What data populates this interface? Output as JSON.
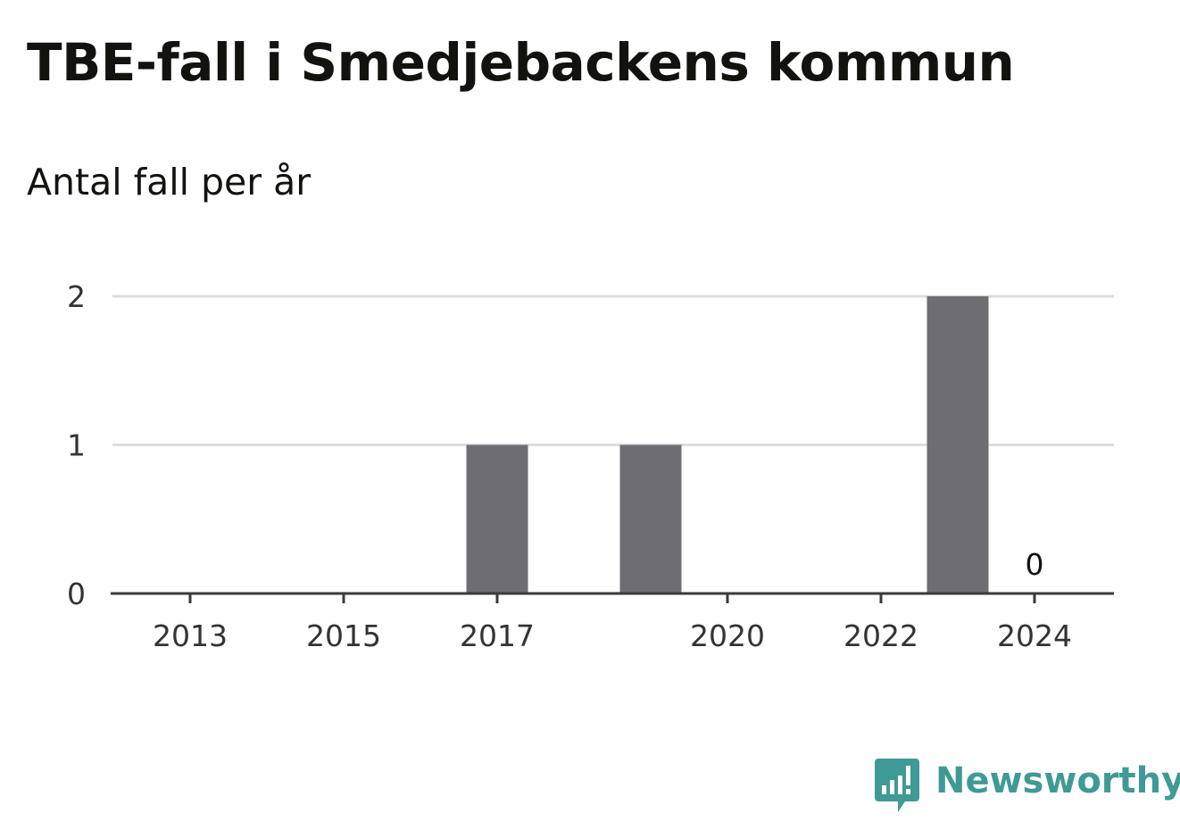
{
  "chart_data": {
    "type": "bar",
    "title": "TBE-fall i Smedjebackens kommun",
    "subtitle": "Antal fall per år",
    "categories": [
      "2013",
      "2014",
      "2015",
      "2016",
      "2017",
      "2018",
      "2019",
      "2020",
      "2021",
      "2022",
      "2023",
      "2024"
    ],
    "values": [
      0,
      0,
      0,
      0,
      1,
      0,
      1,
      0,
      0,
      0,
      2,
      0
    ],
    "x_tick_labels": [
      "2013",
      "2015",
      "2017",
      "2020",
      "2022",
      "2024"
    ],
    "y_ticks": [
      0,
      1,
      2
    ],
    "ylim": [
      0,
      2
    ],
    "xlabel": "",
    "ylabel": "",
    "grid": true,
    "annotations": [
      {
        "category": "2024",
        "text": "0"
      }
    ],
    "colors": {
      "bar": "#6e6d72",
      "grid": "#dddddd",
      "axis": "#3a3a3a",
      "tick_label": "#333333"
    }
  },
  "branding": {
    "logo_text": "Newsworthy",
    "logo_icon": "newsworthy-bar-chart-icon",
    "logo_color": "#3f9a95"
  }
}
